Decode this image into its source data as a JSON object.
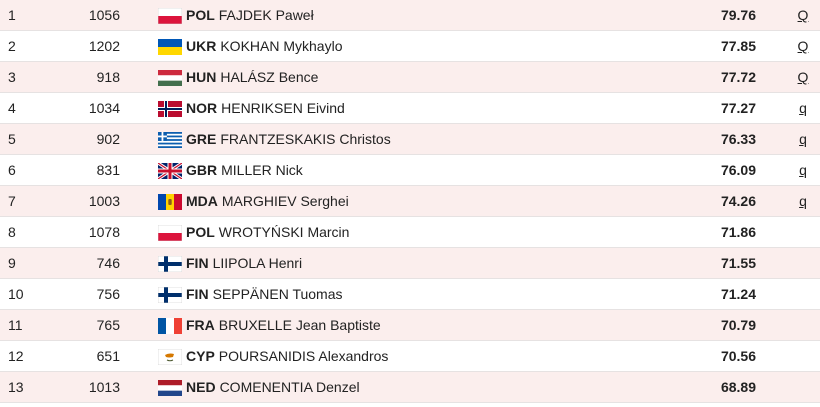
{
  "rows": [
    {
      "rank": "1",
      "bib": "1056",
      "flag": "flag-pol-icon",
      "code": "POL",
      "name": "FAJDEK Paweł",
      "mark": "79.76",
      "q": "Q"
    },
    {
      "rank": "2",
      "bib": "1202",
      "flag": "flag-ukr-icon",
      "code": "UKR",
      "name": "KOKHAN Mykhaylo",
      "mark": "77.85",
      "q": "Q"
    },
    {
      "rank": "3",
      "bib": "918",
      "flag": "flag-hun-icon",
      "code": "HUN",
      "name": "HALÁSZ Bence",
      "mark": "77.72",
      "q": "Q"
    },
    {
      "rank": "4",
      "bib": "1034",
      "flag": "flag-nor-icon",
      "code": "NOR",
      "name": "HENRIKSEN Eivind",
      "mark": "77.27",
      "q": "q"
    },
    {
      "rank": "5",
      "bib": "902",
      "flag": "flag-gre-icon",
      "code": "GRE",
      "name": "FRANTZESKAKIS Christos",
      "mark": "76.33",
      "q": "q"
    },
    {
      "rank": "6",
      "bib": "831",
      "flag": "flag-gbr-icon",
      "code": "GBR",
      "name": "MILLER Nick",
      "mark": "76.09",
      "q": "q"
    },
    {
      "rank": "7",
      "bib": "1003",
      "flag": "flag-mda-icon",
      "code": "MDA",
      "name": "MARGHIEV Serghei",
      "mark": "74.26",
      "q": "q"
    },
    {
      "rank": "8",
      "bib": "1078",
      "flag": "flag-pol-icon",
      "code": "POL",
      "name": "WROTYŃSKI Marcin",
      "mark": "71.86",
      "q": ""
    },
    {
      "rank": "9",
      "bib": "746",
      "flag": "flag-fin-icon",
      "code": "FIN",
      "name": "LIIPOLA Henri",
      "mark": "71.55",
      "q": ""
    },
    {
      "rank": "10",
      "bib": "756",
      "flag": "flag-fin-icon",
      "code": "FIN",
      "name": "SEPPÄNEN Tuomas",
      "mark": "71.24",
      "q": ""
    },
    {
      "rank": "11",
      "bib": "765",
      "flag": "flag-fra-icon",
      "code": "FRA",
      "name": "BRUXELLE Jean Baptiste",
      "mark": "70.79",
      "q": ""
    },
    {
      "rank": "12",
      "bib": "651",
      "flag": "flag-cyp-icon",
      "code": "CYP",
      "name": "POURSANIDIS Alexandros",
      "mark": "70.56",
      "q": ""
    },
    {
      "rank": "13",
      "bib": "1013",
      "flag": "flag-ned-icon",
      "code": "NED",
      "name": "COMENENTIA Denzel",
      "mark": "68.89",
      "q": ""
    }
  ]
}
